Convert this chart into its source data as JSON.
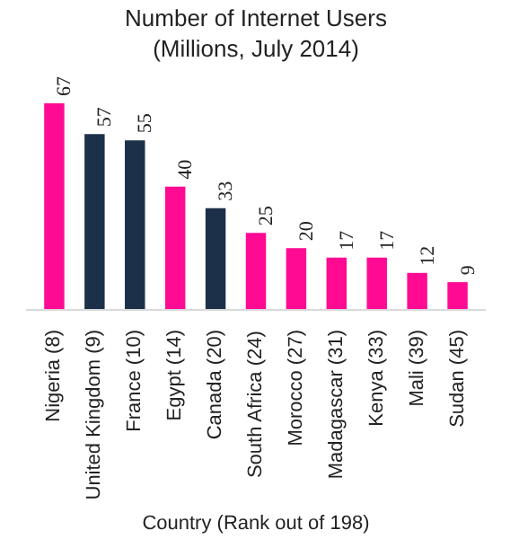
{
  "chart_data": {
    "type": "bar",
    "title": "Number of Internet Users",
    "subtitle": "(Millions, July 2014)",
    "xlabel": "Country (Rank out of 198)",
    "categories": [
      "Nigeria (8)",
      "United Kingdom (9)",
      "France (10)",
      "Egypt (14)",
      "Canada (20)",
      "South Africa (24)",
      "Morocco (27)",
      "Madagascar (31)",
      "Kenya (33)",
      "Mali (39)",
      "Sudan (45)"
    ],
    "values": [
      67,
      57,
      55,
      40,
      33,
      25,
      20,
      17,
      17,
      12,
      9
    ],
    "colors": [
      "#ff0a93",
      "#1d3049",
      "#1d3049",
      "#ff0a93",
      "#1d3049",
      "#ff0a93",
      "#ff0a93",
      "#ff0a93",
      "#ff0a93",
      "#ff0a93",
      "#ff0a93"
    ],
    "data_labels": true,
    "grid": false
  }
}
